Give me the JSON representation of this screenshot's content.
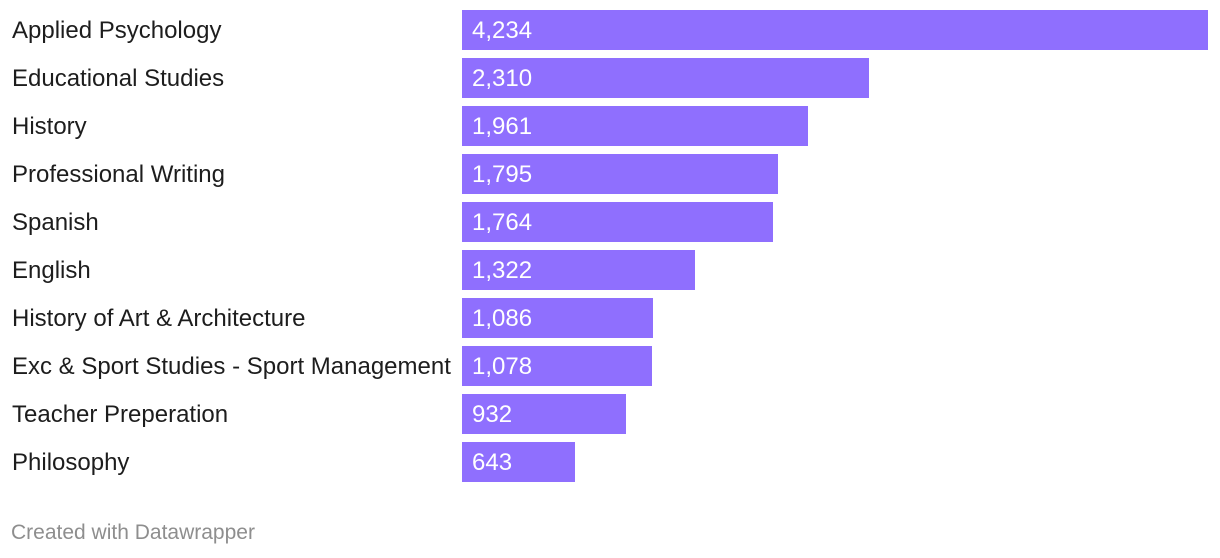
{
  "chart_data": {
    "type": "bar",
    "orientation": "horizontal",
    "categories": [
      "Applied Psychology",
      "Educational Studies",
      "History",
      "Professional Writing",
      "Spanish",
      "English",
      "History of Art & Architecture",
      "Exc & Sport Studies - Sport Management",
      "Teacher Preperation",
      "Philosophy"
    ],
    "values": [
      4234,
      2310,
      1961,
      1795,
      1764,
      1322,
      1086,
      1078,
      932,
      643
    ],
    "value_labels": [
      "4,234",
      "2,310",
      "1,961",
      "1,795",
      "1,764",
      "1,322",
      "1,086",
      "1,078",
      "932",
      "643"
    ],
    "title": "",
    "xlabel": "",
    "ylabel": "",
    "xlim": [
      0,
      4234
    ],
    "grid": false,
    "legend": "none",
    "bar_color": "#8f6ffe"
  },
  "footer": {
    "credit": "Created with Datawrapper"
  }
}
